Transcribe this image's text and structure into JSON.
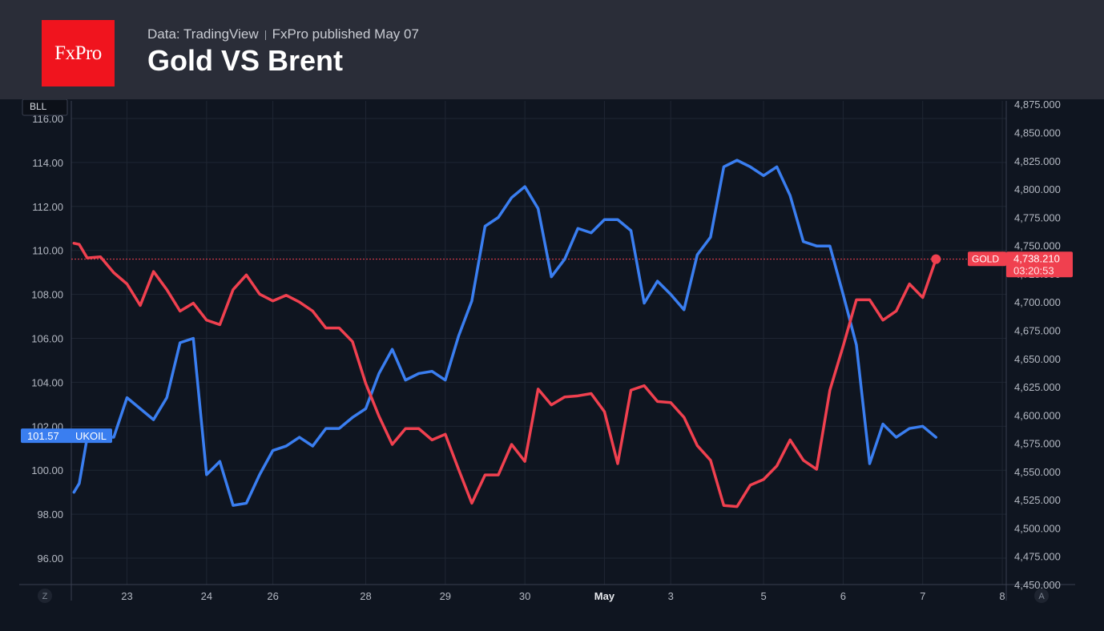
{
  "header": {
    "logo_text": "FxPro",
    "source": "Data: TradingView",
    "published": "FxPro published May 07",
    "title": "Gold VS Brent"
  },
  "colors": {
    "header_bg": "#2a2d38",
    "chart_bg": "#0f1520",
    "logo_bg": "#f0141e",
    "ukoil": "#3a7ef0",
    "gold": "#f0404f"
  },
  "chart_data": {
    "type": "line",
    "title": "Gold VS Brent",
    "x_ticks": [
      {
        "label": "23",
        "x": 1
      },
      {
        "label": "24",
        "x": 7
      },
      {
        "label": "26",
        "x": 12
      },
      {
        "label": "28",
        "x": 19
      },
      {
        "label": "29",
        "x": 25
      },
      {
        "label": "30",
        "x": 31
      },
      {
        "label": "May",
        "x": 37,
        "bold": true
      },
      {
        "label": "3",
        "x": 42
      },
      {
        "label": "5",
        "x": 49
      },
      {
        "label": "6",
        "x": 55
      },
      {
        "label": "7",
        "x": 61
      },
      {
        "label": "8",
        "x": 67
      }
    ],
    "x_range": [
      -3.2,
      67.3
    ],
    "left_axis": {
      "range": [
        94.8,
        116.8
      ],
      "ticks": [
        "96.00",
        "98.00",
        "100.00",
        "102.00",
        "104.00",
        "106.00",
        "108.00",
        "110.00",
        "112.00",
        "114.00",
        "116.00"
      ],
      "badge": "BLL",
      "corner_label": "Z"
    },
    "right_axis": {
      "range": [
        4450,
        4878
      ],
      "ticks": [
        "4,450.000",
        "4,475.000",
        "4,500.000",
        "4,525.000",
        "4,550.000",
        "4,575.000",
        "4,600.000",
        "4,625.000",
        "4,650.000",
        "4,675.000",
        "4,700.000",
        "4,725.000",
        "4,750.000",
        "4,775.000",
        "4,800.000",
        "4,825.000",
        "4,850.000",
        "4,875.000"
      ],
      "corner_label": "A"
    },
    "grid": true,
    "series": [
      {
        "name": "UKOIL",
        "axis": "left",
        "color": "#3a7ef0",
        "last_value": "101.57",
        "x": [
          -3,
          -2.6,
          -2,
          -1,
          0,
          1,
          2,
          3,
          4,
          5,
          6,
          7,
          8,
          9,
          10,
          11,
          12,
          13,
          14,
          15,
          16,
          17,
          18,
          19,
          20,
          21,
          22,
          23,
          24,
          25,
          26,
          27,
          28,
          29,
          30,
          31,
          32,
          33,
          34,
          35,
          36,
          37,
          38,
          39,
          40,
          41,
          42,
          43,
          44,
          45,
          46,
          47,
          48,
          49,
          50,
          51,
          52,
          53,
          54,
          55,
          56,
          57,
          58,
          59,
          60,
          61,
          62
        ],
        "y": [
          99.0,
          99.4,
          101.5,
          101.5,
          101.5,
          103.3,
          102.8,
          102.3,
          103.3,
          105.8,
          106.0,
          99.8,
          100.4,
          98.4,
          98.5,
          99.8,
          100.9,
          101.1,
          101.5,
          101.1,
          101.9,
          101.9,
          102.4,
          102.8,
          104.4,
          105.5,
          104.1,
          104.4,
          104.5,
          104.1,
          106.1,
          107.7,
          111.1,
          111.5,
          112.4,
          112.9,
          111.9,
          108.8,
          109.6,
          111.0,
          110.8,
          111.4,
          111.4,
          110.9,
          107.6,
          108.6,
          108.0,
          107.3,
          109.8,
          110.6,
          113.8,
          114.1,
          113.8,
          113.4,
          113.8,
          112.5,
          110.4,
          110.2,
          110.2,
          108.0,
          105.7,
          100.3,
          102.1,
          101.5,
          101.9,
          102.0,
          101.5
        ]
      },
      {
        "name": "GOLD",
        "axis": "right",
        "color": "#f0404f",
        "last_value": "4,738.210",
        "countdown": "03:20:53",
        "x": [
          -3,
          -2.6,
          -2,
          -1,
          0,
          1,
          2,
          3,
          4,
          5,
          6,
          7,
          8,
          9,
          10,
          11,
          12,
          13,
          14,
          15,
          16,
          17,
          18,
          19,
          20,
          21,
          22,
          23,
          24,
          25,
          26,
          27,
          28,
          29,
          30,
          31,
          32,
          33,
          34,
          35,
          36,
          37,
          38,
          39,
          40,
          41,
          42,
          43,
          44,
          45,
          46,
          47,
          48,
          49,
          50,
          51,
          52,
          53,
          54,
          55,
          56,
          57,
          58,
          59,
          60,
          61,
          62
        ],
        "y": [
          4752,
          4751,
          4739,
          4740,
          4726,
          4716,
          4697,
          4727,
          4711,
          4692,
          4699,
          4684,
          4680,
          4711,
          4724,
          4707,
          4701,
          4706,
          4700,
          4692,
          4677,
          4677,
          4665,
          4628,
          4599,
          4574,
          4588,
          4588,
          4578,
          4583,
          4552,
          4522,
          4547,
          4547,
          4574,
          4559,
          4623,
          4609,
          4616,
          4617,
          4619,
          4603,
          4557,
          4622,
          4626,
          4612,
          4611,
          4598,
          4573,
          4560,
          4520,
          4519,
          4538,
          4543,
          4555,
          4578,
          4560,
          4552,
          4622,
          4661,
          4702,
          4702,
          4684,
          4692,
          4716,
          4704,
          4738
        ]
      }
    ]
  }
}
